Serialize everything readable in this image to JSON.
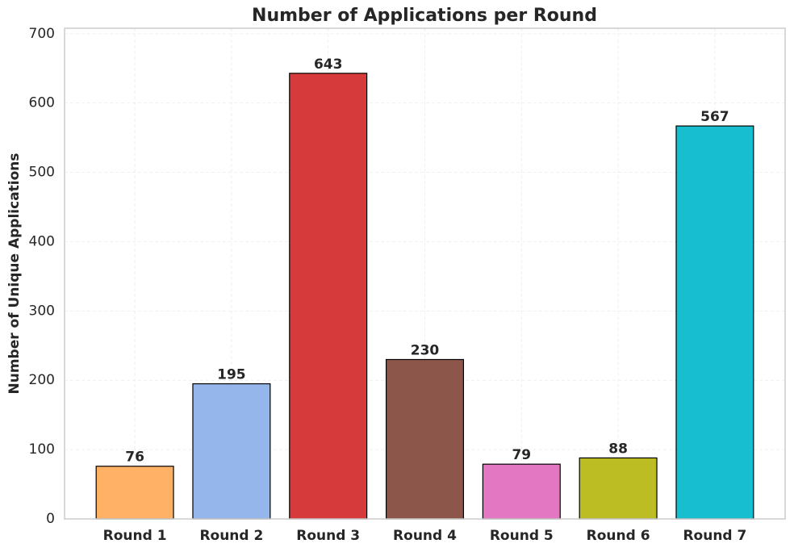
{
  "chart_data": {
    "type": "bar",
    "title": "Number of Applications per Round",
    "y_label": "Number of Unique Applications",
    "categories": [
      "Round 1",
      "Round 2",
      "Round 3",
      "Round 4",
      "Round 5",
      "Round 6",
      "Round 7"
    ],
    "values": [
      76,
      195,
      643,
      230,
      79,
      88,
      567
    ],
    "colors": [
      "#ffb266",
      "#95b6ea",
      "#d63a3a",
      "#8c564b",
      "#e377c2",
      "#bcbd22",
      "#17becf"
    ],
    "ylim": [
      0,
      708
    ],
    "yticks": [
      0,
      100,
      200,
      300,
      400,
      500,
      600,
      700
    ],
    "grid": true
  }
}
